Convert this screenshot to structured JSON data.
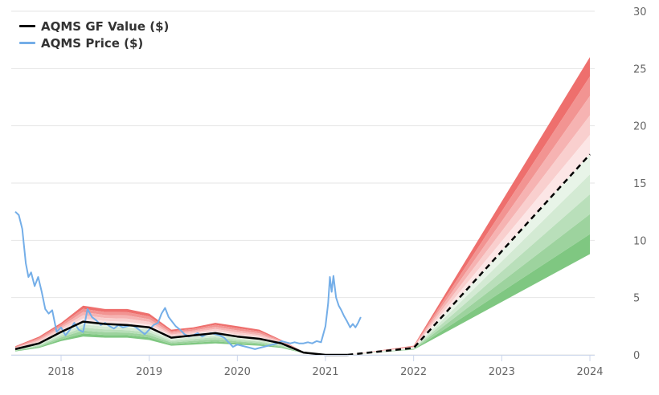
{
  "chart_data": {
    "type": "line",
    "title": "",
    "xlabel": "",
    "ylabel": "",
    "ylim": [
      0,
      30
    ],
    "xlim": [
      2017.46,
      2024.0
    ],
    "y_ticks": [
      "0",
      "5",
      "10",
      "15",
      "20",
      "25",
      "30"
    ],
    "x_ticks": [
      "2018",
      "2019",
      "2020",
      "2021",
      "2022",
      "2023",
      "2024"
    ],
    "grid": true,
    "legend_position": "top-left",
    "series": [
      {
        "name": "AQMS GF Value ($)",
        "color": "#000000",
        "points": [
          [
            2017.48,
            0.5
          ],
          [
            2017.75,
            1.0
          ],
          [
            2018.0,
            2.0
          ],
          [
            2018.25,
            2.9
          ],
          [
            2018.5,
            2.7
          ],
          [
            2018.75,
            2.6
          ],
          [
            2019.0,
            2.4
          ],
          [
            2019.25,
            1.5
          ],
          [
            2019.5,
            1.7
          ],
          [
            2019.75,
            1.9
          ],
          [
            2020.0,
            1.6
          ],
          [
            2020.25,
            1.4
          ],
          [
            2020.5,
            1.0
          ],
          [
            2020.75,
            0.2
          ],
          [
            2021.0,
            0.0
          ],
          [
            2021.25,
            0.0
          ]
        ],
        "projection": [
          [
            2021.25,
            0.0
          ],
          [
            2022.0,
            0.6
          ],
          [
            2024.0,
            17.5
          ]
        ]
      },
      {
        "name": "AQMS Price ($)",
        "color": "#74aee8",
        "points": [
          [
            2017.48,
            12.5
          ],
          [
            2017.52,
            12.2
          ],
          [
            2017.56,
            11.0
          ],
          [
            2017.6,
            8.0
          ],
          [
            2017.63,
            6.8
          ],
          [
            2017.66,
            7.2
          ],
          [
            2017.7,
            6.0
          ],
          [
            2017.74,
            6.8
          ],
          [
            2017.78,
            5.5
          ],
          [
            2017.82,
            4.0
          ],
          [
            2017.86,
            3.6
          ],
          [
            2017.9,
            3.9
          ],
          [
            2017.95,
            2.0
          ],
          [
            2018.0,
            2.4
          ],
          [
            2018.05,
            1.7
          ],
          [
            2018.1,
            2.2
          ],
          [
            2018.15,
            2.8
          ],
          [
            2018.2,
            2.2
          ],
          [
            2018.25,
            2.0
          ],
          [
            2018.3,
            4.0
          ],
          [
            2018.35,
            3.3
          ],
          [
            2018.4,
            3.0
          ],
          [
            2018.45,
            2.6
          ],
          [
            2018.5,
            2.8
          ],
          [
            2018.55,
            2.5
          ],
          [
            2018.6,
            2.3
          ],
          [
            2018.65,
            2.6
          ],
          [
            2018.7,
            2.4
          ],
          [
            2018.75,
            2.5
          ],
          [
            2018.8,
            2.6
          ],
          [
            2018.85,
            2.4
          ],
          [
            2018.9,
            2.1
          ],
          [
            2018.95,
            1.8
          ],
          [
            2019.0,
            2.2
          ],
          [
            2019.05,
            2.6
          ],
          [
            2019.1,
            2.8
          ],
          [
            2019.14,
            3.6
          ],
          [
            2019.18,
            4.1
          ],
          [
            2019.22,
            3.3
          ],
          [
            2019.26,
            2.9
          ],
          [
            2019.3,
            2.5
          ],
          [
            2019.35,
            2.2
          ],
          [
            2019.4,
            1.8
          ],
          [
            2019.45,
            1.6
          ],
          [
            2019.5,
            1.7
          ],
          [
            2019.55,
            1.9
          ],
          [
            2019.6,
            1.6
          ],
          [
            2019.65,
            1.8
          ],
          [
            2019.7,
            1.9
          ],
          [
            2019.75,
            1.8
          ],
          [
            2019.8,
            1.7
          ],
          [
            2019.85,
            1.5
          ],
          [
            2019.9,
            1.1
          ],
          [
            2019.95,
            0.7
          ],
          [
            2020.0,
            0.9
          ],
          [
            2020.05,
            0.8
          ],
          [
            2020.1,
            0.7
          ],
          [
            2020.15,
            0.6
          ],
          [
            2020.2,
            0.5
          ],
          [
            2020.25,
            0.6
          ],
          [
            2020.3,
            0.7
          ],
          [
            2020.35,
            0.8
          ],
          [
            2020.4,
            0.9
          ],
          [
            2020.45,
            1.0
          ],
          [
            2020.5,
            1.2
          ],
          [
            2020.55,
            1.1
          ],
          [
            2020.6,
            1.0
          ],
          [
            2020.65,
            1.1
          ],
          [
            2020.7,
            1.0
          ],
          [
            2020.75,
            1.0
          ],
          [
            2020.8,
            1.1
          ],
          [
            2020.85,
            1.0
          ],
          [
            2020.9,
            1.2
          ],
          [
            2020.95,
            1.1
          ],
          [
            2021.0,
            2.5
          ],
          [
            2021.03,
            4.5
          ],
          [
            2021.05,
            6.8
          ],
          [
            2021.07,
            5.5
          ],
          [
            2021.09,
            6.9
          ],
          [
            2021.12,
            5.0
          ],
          [
            2021.15,
            4.3
          ],
          [
            2021.18,
            3.9
          ],
          [
            2021.21,
            3.4
          ],
          [
            2021.24,
            3.0
          ],
          [
            2021.28,
            2.4
          ],
          [
            2021.31,
            2.7
          ],
          [
            2021.34,
            2.4
          ],
          [
            2021.37,
            2.8
          ],
          [
            2021.4,
            3.3
          ]
        ]
      }
    ],
    "band": {
      "description_colors": {
        "upper": "#e8413f",
        "lower": "#4caf50"
      },
      "history_upper": [
        [
          2017.48,
          0.75
        ],
        [
          2017.75,
          1.6
        ],
        [
          2018.0,
          2.8
        ],
        [
          2018.25,
          4.3
        ],
        [
          2018.5,
          4.0
        ],
        [
          2018.75,
          4.0
        ],
        [
          2019.0,
          3.6
        ],
        [
          2019.25,
          2.2
        ],
        [
          2019.5,
          2.4
        ],
        [
          2019.75,
          2.8
        ],
        [
          2020.0,
          2.5
        ],
        [
          2020.25,
          2.2
        ],
        [
          2020.5,
          1.3
        ],
        [
          2020.75,
          0.25
        ],
        [
          2021.0,
          0.0
        ],
        [
          2021.25,
          0.0
        ]
      ],
      "history_lower": [
        [
          2017.48,
          0.3
        ],
        [
          2017.75,
          0.6
        ],
        [
          2018.0,
          1.2
        ],
        [
          2018.25,
          1.6
        ],
        [
          2018.5,
          1.5
        ],
        [
          2018.75,
          1.5
        ],
        [
          2019.0,
          1.3
        ],
        [
          2019.25,
          0.8
        ],
        [
          2019.5,
          0.9
        ],
        [
          2019.75,
          1.0
        ],
        [
          2020.0,
          0.9
        ],
        [
          2020.25,
          0.8
        ],
        [
          2020.5,
          0.6
        ],
        [
          2020.75,
          0.15
        ],
        [
          2021.0,
          0.0
        ],
        [
          2021.25,
          0.0
        ]
      ],
      "projection_upper": [
        [
          2021.25,
          0.0
        ],
        [
          2022.0,
          0.8
        ],
        [
          2024.0,
          26.0
        ]
      ],
      "projection_lower": [
        [
          2021.25,
          0.0
        ],
        [
          2022.0,
          0.45
        ],
        [
          2024.0,
          8.8
        ]
      ]
    }
  }
}
